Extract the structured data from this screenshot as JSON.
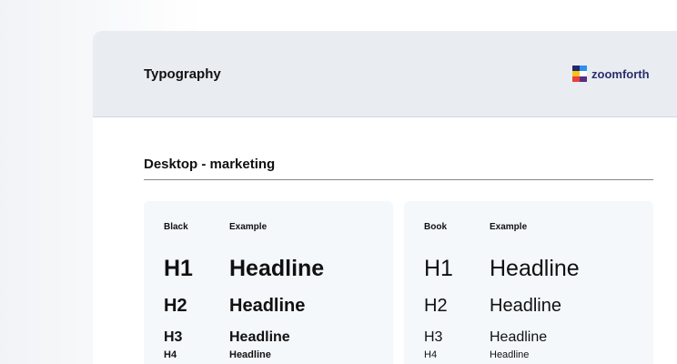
{
  "header": {
    "title": "Typography",
    "brand": "zoomforth",
    "logo_colors": [
      "#1f2a6b",
      "#2f8ff0",
      "#f7c21b",
      "#ffffff",
      "#e8403a",
      "#5a2d82"
    ]
  },
  "section": {
    "title": "Desktop - marketing"
  },
  "panels": [
    {
      "weight_label": "Black",
      "example_label": "Example",
      "rows": [
        {
          "tag": "H1",
          "sample": "Headline"
        },
        {
          "tag": "H2",
          "sample": "Headline"
        },
        {
          "tag": "H3",
          "sample": "Headline"
        },
        {
          "tag": "H4",
          "sample": "Headline"
        }
      ]
    },
    {
      "weight_label": "Book",
      "example_label": "Example",
      "rows": [
        {
          "tag": "H1",
          "sample": "Headline"
        },
        {
          "tag": "H2",
          "sample": "Headline"
        },
        {
          "tag": "H3",
          "sample": "Headline"
        },
        {
          "tag": "H4",
          "sample": "Headline"
        }
      ]
    }
  ]
}
